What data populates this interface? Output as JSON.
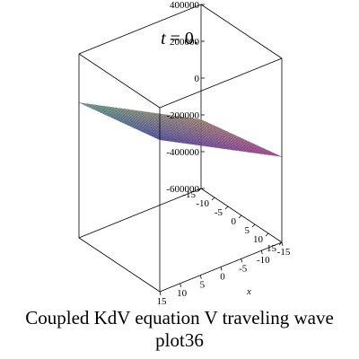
{
  "chart_data": {
    "type": "surface3d",
    "title": "t = 0.",
    "caption_line1": "Coupled KdV equation V traveling wave",
    "caption_line2": "plot36",
    "x_axis_label": "x",
    "x_range": [
      -15,
      15
    ],
    "y_range": [
      -15,
      15
    ],
    "z_range": [
      -600000,
      400000
    ],
    "x_ticks": [
      "15",
      "10",
      "5",
      "0",
      "-5",
      "-10",
      "-15"
    ],
    "y_ticks": [
      "-15",
      "-10",
      "-5",
      "0",
      "5",
      "10",
      "15"
    ],
    "z_ticks": [
      "400000",
      "200000",
      "0",
      "-200000",
      "-400000",
      "-600000"
    ],
    "surface": {
      "description_hidden": false,
      "grid_size": 30,
      "z_plane_offset": 0,
      "x_slope": 12000,
      "y_slope": 3000,
      "colors": {
        "corner_xmin_ymin": "#d8b0a0",
        "corner_xmin_ymax": "#e060c8",
        "corner_xmax_ymin": "#8ad0b8",
        "corner_xmax_ymax": "#6a68d8"
      }
    }
  }
}
